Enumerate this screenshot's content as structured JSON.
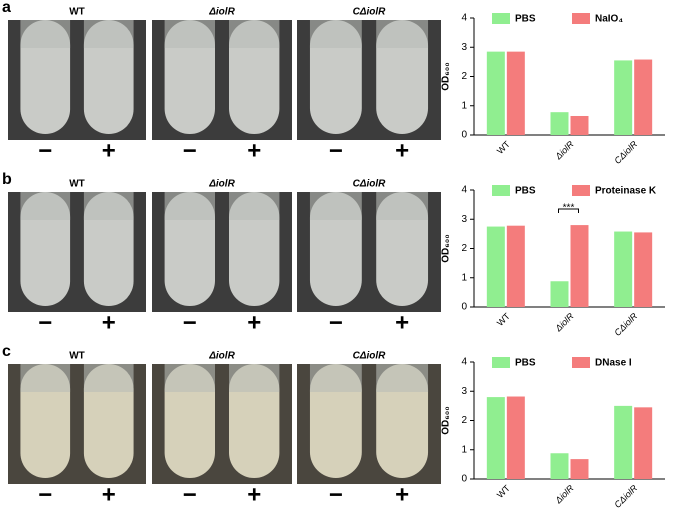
{
  "panels": [
    {
      "label": "a",
      "samples": [
        {
          "name": "WT",
          "signs": [
            "−",
            "+"
          ]
        },
        {
          "name": "ΔiolR",
          "signs": [
            "−",
            "+"
          ]
        },
        {
          "name": "CΔiolR",
          "signs": [
            "−",
            "+"
          ]
        }
      ]
    },
    {
      "label": "b",
      "samples": [
        {
          "name": "WT",
          "signs": [
            "−",
            "+"
          ]
        },
        {
          "name": "ΔiolR",
          "signs": [
            "−",
            "+"
          ]
        },
        {
          "name": "CΔiolR",
          "signs": [
            "−",
            "+"
          ]
        }
      ]
    },
    {
      "label": "c",
      "samples": [
        {
          "name": "WT",
          "signs": [
            "−",
            "+"
          ]
        },
        {
          "name": "ΔiolR",
          "signs": [
            "−",
            "+"
          ]
        },
        {
          "name": "CΔiolR",
          "signs": [
            "−",
            "+"
          ]
        }
      ]
    }
  ],
  "chart_data": [
    {
      "type": "bar",
      "y_label": "OD₆₀₀",
      "categories": [
        "WT",
        "ΔiolR",
        "CΔiolR"
      ],
      "series": [
        {
          "name": "PBS",
          "color": "#90ee90",
          "values": [
            2.85,
            0.78,
            2.55
          ]
        },
        {
          "name": "NaIO₄",
          "color": "#f47c7c",
          "values": [
            2.85,
            0.65,
            2.58
          ]
        }
      ],
      "ylim": [
        0,
        4
      ],
      "yticks": [
        0,
        1,
        2,
        3,
        4
      ]
    },
    {
      "type": "bar",
      "y_label": "OD₆₀₀",
      "categories": [
        "WT",
        "ΔiolR",
        "CΔiolR"
      ],
      "series": [
        {
          "name": "PBS",
          "color": "#90ee90",
          "values": [
            2.75,
            0.88,
            2.58
          ]
        },
        {
          "name": "Proteinase K",
          "color": "#f47c7c",
          "values": [
            2.78,
            2.8,
            2.55
          ]
        }
      ],
      "ylim": [
        0,
        4
      ],
      "yticks": [
        0,
        1,
        2,
        3,
        4
      ],
      "annotation": "***"
    },
    {
      "type": "bar",
      "y_label": "OD₆₀₀",
      "categories": [
        "WT",
        "ΔiolR",
        "CΔiolR"
      ],
      "series": [
        {
          "name": "PBS",
          "color": "#90ee90",
          "values": [
            2.8,
            0.88,
            2.5
          ]
        },
        {
          "name": "DNase I",
          "color": "#f47c7c",
          "values": [
            2.82,
            0.68,
            2.45
          ]
        }
      ],
      "ylim": [
        0,
        4
      ],
      "yticks": [
        0,
        1,
        2,
        3,
        4
      ]
    }
  ]
}
